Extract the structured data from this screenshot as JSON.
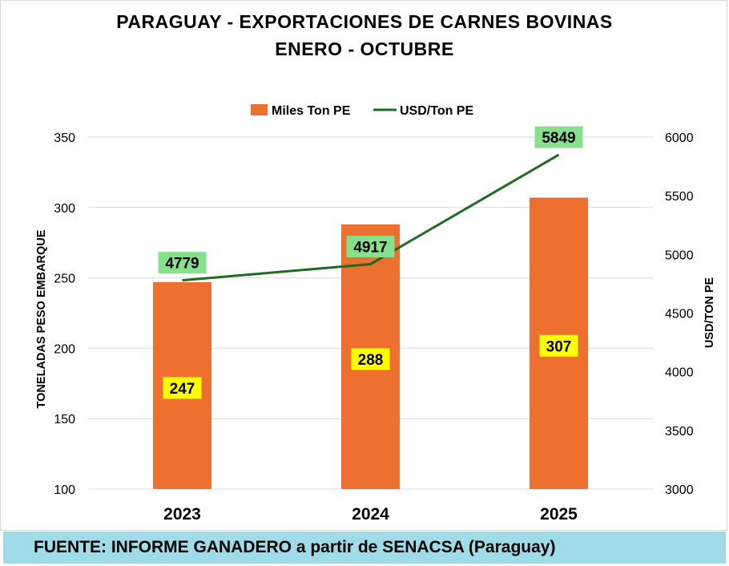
{
  "chart_data": {
    "type": "bar",
    "title": "PARAGUAY - EXPORTACIONES DE CARNES BOVINAS",
    "subtitle": "ENERO - OCTUBRE",
    "categories": [
      "2023",
      "2024",
      "2025"
    ],
    "series": [
      {
        "name": "Miles Ton PE",
        "type": "bar",
        "axis": "left",
        "color": "#ed7030",
        "values": [
          247,
          288,
          307
        ],
        "labels": [
          "247",
          "288",
          "307"
        ]
      },
      {
        "name": "USD/Ton PE",
        "type": "line",
        "axis": "right",
        "color": "#1e6b24",
        "values": [
          4779,
          4917,
          5849
        ],
        "labels": [
          "4779",
          "4917",
          "5849"
        ]
      }
    ],
    "ylabel": "TONELADAS PESO EMBARQUE",
    "y2label": "USD/TON PE",
    "ylim": [
      100,
      350
    ],
    "yticks": [
      100,
      150,
      200,
      250,
      300,
      350
    ],
    "y2lim": [
      3000,
      6000
    ],
    "y2ticks": [
      3000,
      3500,
      4000,
      4500,
      5000,
      5500,
      6000
    ],
    "grid": true,
    "legend_position": "top-center",
    "bar_label_bg": "#ffff00",
    "line_label_bg": "#86e08c"
  },
  "footer": "FUENTE: INFORME GANADERO a partir de SENACSA (Paraguay)"
}
